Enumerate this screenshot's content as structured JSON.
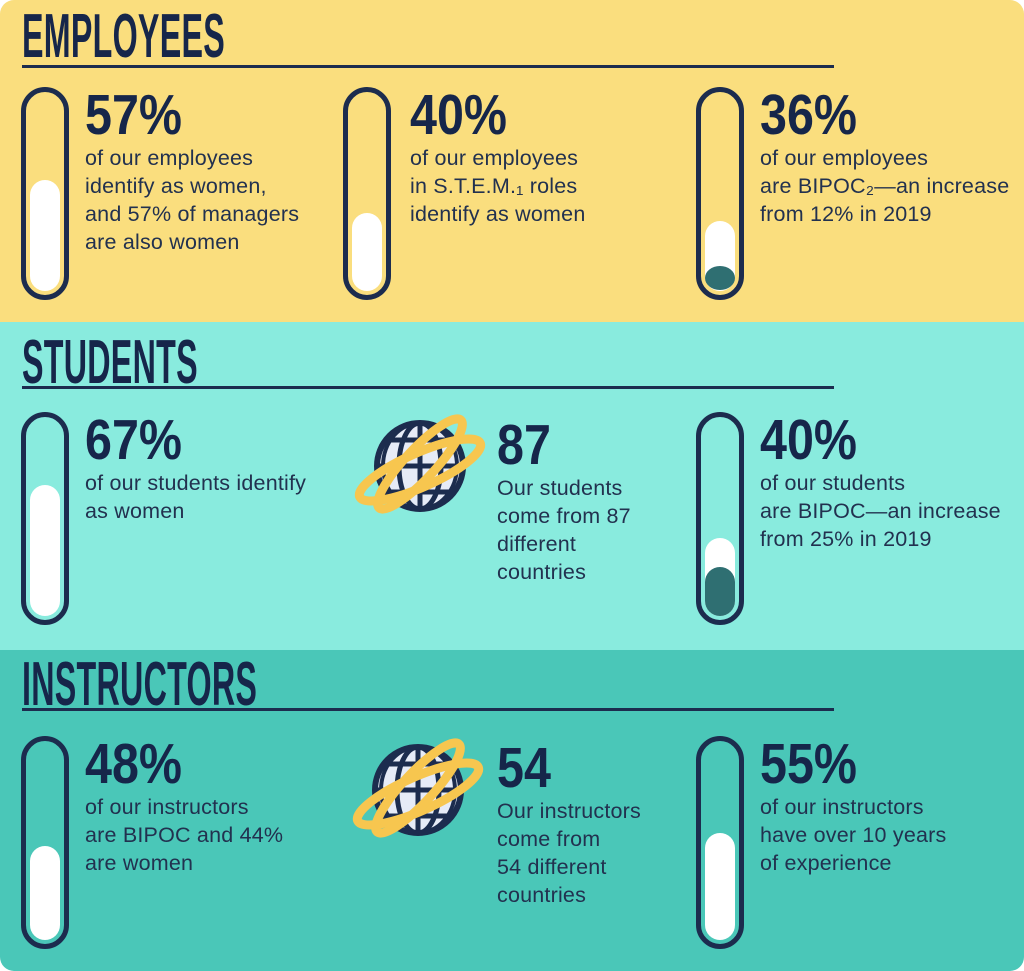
{
  "colors": {
    "employees_bg": "#FADE7E",
    "students_bg": "#89EBDE",
    "instructors_bg": "#4AC7B8",
    "navy_ink": "#1C2C4E",
    "gauge_fill_white": "#FFFFFF",
    "gauge_baseline_teal": "#2F6F72",
    "globe_face": "#E6EBF7",
    "orbit_yellow": "#F7C64F"
  },
  "sections": [
    {
      "title": "EMPLOYEES",
      "stats": [
        {
          "kind": "gauge",
          "value": "57%",
          "pct": 57,
          "description": "of our employees\nidentify as women,\nand 57% of managers\nare also women"
        },
        {
          "kind": "gauge",
          "value": "40%",
          "pct": 40,
          "description": "of our employees\nin S.T.E.M.₁ roles\nidentify as women"
        },
        {
          "kind": "gauge",
          "value": "36%",
          "pct": 36,
          "baseline_pct": 12,
          "description": "of our employees\nare BIPOC₂—an increase\nfrom 12% in 2019"
        }
      ]
    },
    {
      "title": "STUDENTS",
      "stats": [
        {
          "kind": "gauge",
          "value": "67%",
          "pct": 67,
          "description": "of our students identify\nas women"
        },
        {
          "kind": "globe",
          "value": "87",
          "description": "Our students\ncome from 87\ndifferent\ncountries"
        },
        {
          "kind": "gauge",
          "value": "40%",
          "pct": 40,
          "baseline_pct": 25,
          "description": "of our students\nare BIPOC—an increase\nfrom 25% in 2019"
        }
      ]
    },
    {
      "title": "INSTRUCTORS",
      "stats": [
        {
          "kind": "gauge",
          "value": "48%",
          "pct": 48,
          "description": "of our instructors\nare BIPOC and 44%\nare women"
        },
        {
          "kind": "globe",
          "value": "54",
          "description": "Our instructors\ncome from\n54 different\ncountries"
        },
        {
          "kind": "gauge",
          "value": "55%",
          "pct": 55,
          "description": "of our instructors\nhave over 10 years\nof experience"
        }
      ]
    }
  ],
  "chart_data": [
    {
      "type": "bar",
      "title": "EMPLOYEES",
      "categories": [
        "employees identifying as women",
        "employees in S.T.E.M. roles identifying as women",
        "employees who are BIPOC"
      ],
      "values": [
        57,
        40,
        36
      ],
      "units": [
        "%",
        "%",
        "%"
      ],
      "baseline_2019": [
        null,
        null,
        12
      ],
      "notes": [
        "57% of managers are also women",
        null,
        "an increase from 12% in 2019"
      ]
    },
    {
      "type": "bar",
      "title": "STUDENTS",
      "categories": [
        "students identifying as women",
        "countries students come from",
        "students who are BIPOC"
      ],
      "values": [
        67,
        87,
        40
      ],
      "units": [
        "%",
        "count",
        "%"
      ],
      "baseline_2019": [
        null,
        null,
        25
      ],
      "notes": [
        null,
        "our students come from 87 different countries",
        "an increase from 25% in 2019"
      ]
    },
    {
      "type": "bar",
      "title": "INSTRUCTORS",
      "categories": [
        "instructors who are BIPOC",
        "countries instructors come from",
        "instructors with over 10 years of experience"
      ],
      "values": [
        48,
        54,
        55
      ],
      "units": [
        "%",
        "count",
        "%"
      ],
      "baseline_2019": [
        null,
        null,
        null
      ],
      "notes": [
        "44% of instructors are women",
        "our instructors come from 54 different countries",
        null
      ]
    }
  ]
}
